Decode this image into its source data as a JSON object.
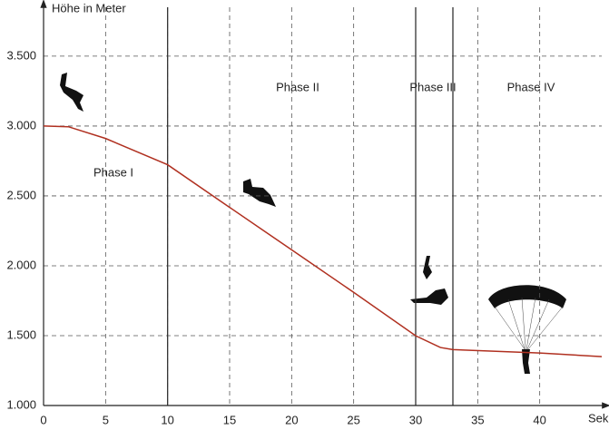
{
  "chart_data": {
    "type": "line",
    "y_label": "Höhe in Meter",
    "x_label": "Sek",
    "x": [
      0,
      2,
      5,
      10,
      15,
      20,
      25,
      30,
      32,
      33,
      40,
      45
    ],
    "series": [
      {
        "name": "Höhe",
        "color": "#b03020",
        "values": [
          3000,
          2995,
          2911,
          2723,
          2418,
          2114,
          1810,
          1499,
          1415,
          1400,
          1376,
          1350
        ]
      }
    ],
    "xlim": [
      0,
      45
    ],
    "ylim": [
      1000,
      3850
    ],
    "xticks": [
      0,
      5,
      10,
      15,
      20,
      25,
      30,
      35,
      40
    ],
    "yticks": [
      {
        "value": 1000,
        "label": "1.000"
      },
      {
        "value": 1500,
        "label": "1.500"
      },
      {
        "value": 2000,
        "label": "2.000"
      },
      {
        "value": 2500,
        "label": "2.500"
      },
      {
        "value": 3000,
        "label": "3.000"
      },
      {
        "value": 3500,
        "label": "3.500"
      }
    ],
    "grid": true,
    "phase_boundaries": [
      10,
      30,
      33
    ],
    "annotations": [
      "Phase I",
      "Phase II",
      "Phase III",
      "Phase IV"
    ]
  }
}
